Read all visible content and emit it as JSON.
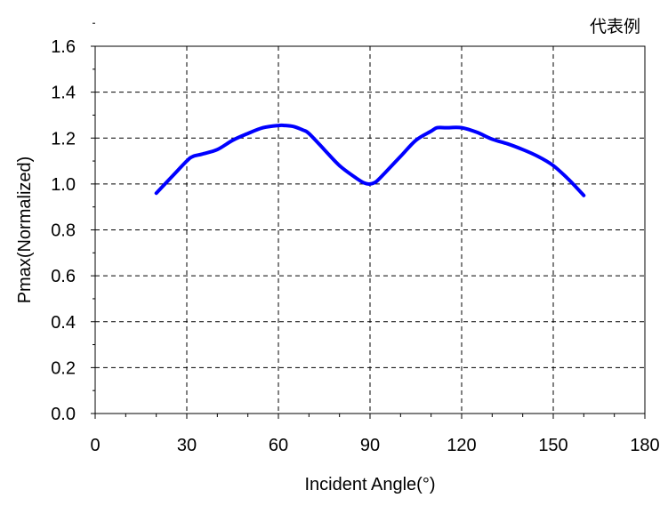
{
  "chart_data": {
    "type": "line",
    "title": "",
    "annotation": "代表例",
    "xlabel": "Incident Angle(°)",
    "ylabel": "Pmax(Normalized)",
    "xlim": [
      0,
      180
    ],
    "ylim": [
      0.0,
      1.6
    ],
    "xticks": [
      "0",
      "30",
      "60",
      "90",
      "120",
      "150",
      "180"
    ],
    "yticks": [
      "0.0",
      "0.2",
      "0.4",
      "0.6",
      "0.8",
      "1.0",
      "1.2",
      "1.4",
      "1.6"
    ],
    "grid": true,
    "legend": "none",
    "colors": {
      "line": "#0000ff",
      "grid": "#000000",
      "axis": "#000000"
    },
    "series": [
      {
        "x": [
          20,
          25,
          30,
          32,
          35,
          40,
          45,
          50,
          55,
          60,
          62,
          65,
          68,
          70,
          75,
          80,
          85,
          88,
          90,
          92,
          95,
          100,
          105,
          110,
          112,
          115,
          120,
          125,
          130,
          135,
          140,
          145,
          150,
          155,
          160
        ],
        "y": [
          0.96,
          1.03,
          1.1,
          1.12,
          1.13,
          1.15,
          1.19,
          1.22,
          1.245,
          1.255,
          1.255,
          1.25,
          1.235,
          1.22,
          1.15,
          1.08,
          1.03,
          1.005,
          1.0,
          1.01,
          1.05,
          1.12,
          1.19,
          1.23,
          1.245,
          1.245,
          1.245,
          1.225,
          1.195,
          1.175,
          1.15,
          1.12,
          1.08,
          1.02,
          0.95
        ]
      }
    ]
  }
}
